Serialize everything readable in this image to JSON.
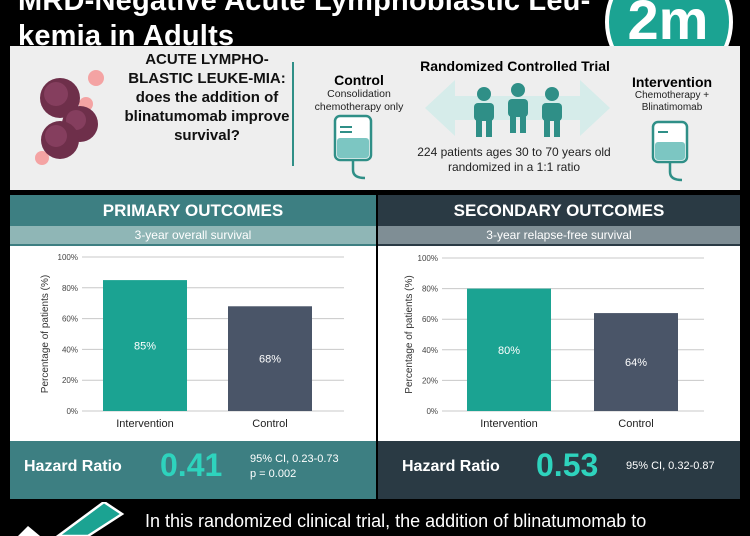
{
  "header": {
    "title_line1": "MRD-Negative Acute Lymphoblastic Leu-",
    "title_line2": "kemia in Adults",
    "logo_text": "2m"
  },
  "study": {
    "question": "ACUTE LYMPHO-BLASTIC LEUKE-MIA: does the addition of blinatumomab improve survival?",
    "control_title": "Control",
    "control_desc": "Consolidation chemotherapy only",
    "design_title": "Randomized Controlled Trial",
    "design_desc": "224 patients ages 30 to 70 years old randomized in a 1:1 ratio",
    "intervention_title": "Intervention",
    "intervention_desc": "Chemotherapy + Blinatimomab"
  },
  "primary": {
    "heading": "PRIMARY OUTCOMES",
    "subheading": "3-year overall survival",
    "hr_label": "Hazard Ratio",
    "hr_value": "0.41",
    "hr_ci": "95% CI, 0.23-0.73",
    "hr_p": "p = 0.002"
  },
  "secondary": {
    "heading": "SECONDARY OUTCOMES",
    "subheading": "3-year relapse-free survival",
    "hr_label": "Hazard Ratio",
    "hr_value": "0.53",
    "hr_ci": "95% CI, 0.32-0.87"
  },
  "footer": {
    "text": "In this randomized clinical trial, the addition of blinatumomab to"
  },
  "colors": {
    "teal": "#1ba392",
    "slate": "#4a5568",
    "hr_accent": "#2ed3bd"
  },
  "chart_data": [
    {
      "type": "bar",
      "categories": [
        "Intervention",
        "Control"
      ],
      "values": [
        85,
        68
      ],
      "value_labels": [
        "85%",
        "68%"
      ],
      "ylabel": "Percentage of patients (%)",
      "ylim": [
        0,
        100
      ],
      "yticks": [
        "0%",
        "20%",
        "40%",
        "60%",
        "80%",
        "100%"
      ],
      "bar_colors": [
        "#1ba392",
        "#4a5568"
      ],
      "grid": true
    },
    {
      "type": "bar",
      "categories": [
        "Intervention",
        "Control"
      ],
      "values": [
        80,
        64
      ],
      "value_labels": [
        "80%",
        "64%"
      ],
      "ylabel": "Percentage of patients (%)",
      "ylim": [
        0,
        100
      ],
      "yticks": [
        "0%",
        "20%",
        "40%",
        "60%",
        "80%",
        "100%"
      ],
      "bar_colors": [
        "#1ba392",
        "#4a5568"
      ],
      "grid": true
    }
  ]
}
